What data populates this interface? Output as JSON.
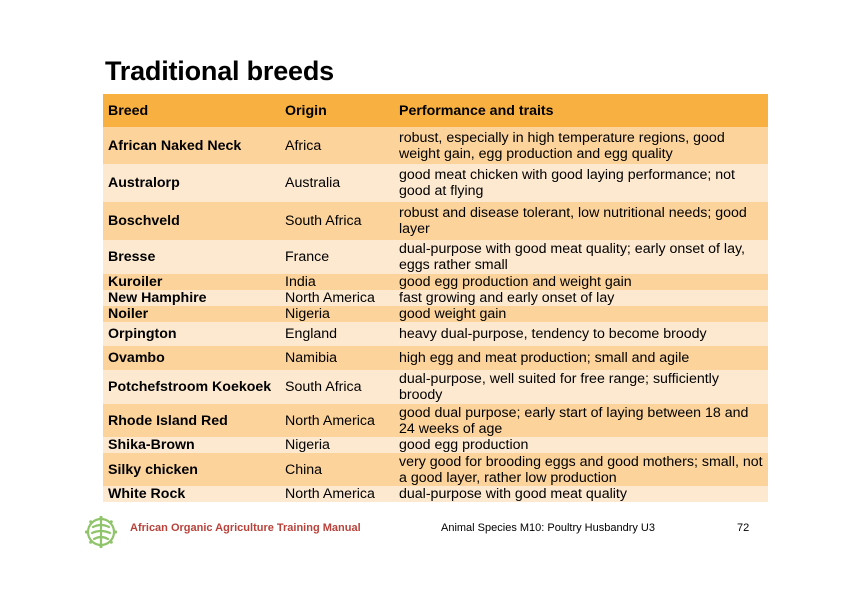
{
  "title": "Traditional breeds",
  "table": {
    "headers": [
      "Breed",
      "Origin",
      "Performance and traits"
    ],
    "rows": [
      {
        "breed": "African Naked Neck",
        "origin": "Africa",
        "traits": "robust, especially in high temperature regions, good weight gain, egg production and egg quality"
      },
      {
        "breed": "Australorp",
        "origin": "Australia",
        "traits": "good meat chicken with good laying performance; not good at flying"
      },
      {
        "breed": "Boschveld",
        "origin": "South Africa",
        "traits": "robust and disease tolerant, low nutritional needs; good layer"
      },
      {
        "breed": "Bresse",
        "origin": "France",
        "traits": "dual-purpose with good meat quality; early onset of lay, eggs rather small"
      },
      {
        "breed": "Kuroiler",
        "origin": "India",
        "traits": "good egg production and weight gain"
      },
      {
        "breed": "New Hamphire",
        "origin": "North America",
        "traits": "fast growing and early onset of lay"
      },
      {
        "breed": "Noiler",
        "origin": "Nigeria",
        "traits": "good weight gain"
      },
      {
        "breed": "Orpington",
        "origin": "England",
        "traits": "heavy dual-purpose, tendency to become broody"
      },
      {
        "breed": "Ovambo",
        "origin": "Namibia",
        "traits": "high egg and meat production; small and agile"
      },
      {
        "breed": "Potchefstroom Koekoek",
        "origin": "South Africa",
        "traits": "dual-purpose, well suited for free range; sufficiently broody"
      },
      {
        "breed": "Rhode Island Red",
        "origin": "North America",
        "traits": "good dual purpose; early start of laying between 18 and 24 weeks of age"
      },
      {
        "breed": "Shika-Brown",
        "origin": "Nigeria",
        "traits": "good egg production"
      },
      {
        "breed": "Silky chicken",
        "origin": "China",
        "traits": "very good for brooding eggs and good mothers; small, not a good layer, rather low production"
      },
      {
        "breed": "White Rock",
        "origin": "North America",
        "traits": "dual-purpose with good meat quality"
      }
    ]
  },
  "footer": {
    "manual": "African Organic Agriculture Training Manual",
    "section": "Animal Species M10: Poultry Husbandry U3",
    "page": "72",
    "logo_icon": "leaf-logo-icon"
  },
  "colors": {
    "header_bg": "#f8b041",
    "row_dark": "#fcd39b",
    "row_light": "#fde9d0",
    "footer_accent": "#b8423a",
    "logo_green": "#8fc46a"
  }
}
